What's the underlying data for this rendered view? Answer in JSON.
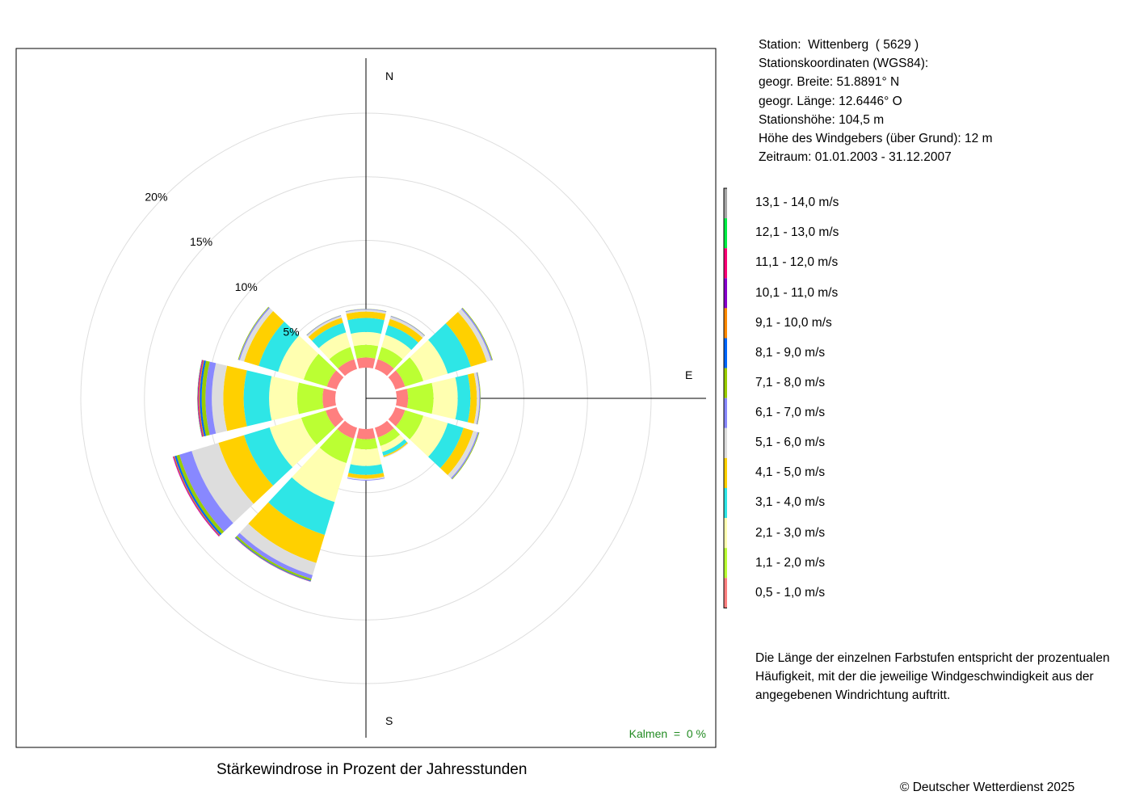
{
  "station": {
    "lines": [
      "Station:  Wittenberg  ( 5629 )",
      "Stationskoordinaten (WGS84):",
      "geogr. Breite: 51.8891° N",
      "geogr. Länge: 12.6446° O",
      "Stationshöhe: 104,5 m",
      "Höhe des Windgebers (über Grund): 12 m",
      "Zeitraum: 01.01.2003 - 31.12.2007"
    ]
  },
  "legend": [
    {
      "label": "13,1 - 14,0 m/s",
      "color": "#a6a6a6"
    },
    {
      "label": "12,1 - 13,0 m/s",
      "color": "#00ee44"
    },
    {
      "label": "11,1 - 12,0 m/s",
      "color": "#ff0077"
    },
    {
      "label": "10,1 - 11,0 m/s",
      "color": "#8800cc"
    },
    {
      "label": "9,1 - 10,0 m/s",
      "color": "#ff8800"
    },
    {
      "label": "8,1 - 9,0 m/s",
      "color": "#0066ff"
    },
    {
      "label": "7,1 - 8,0 m/s",
      "color": "#99cc00"
    },
    {
      "label": "6,1 - 7,0 m/s",
      "color": "#8888ff"
    },
    {
      "label": "5,1 - 6,0 m/s",
      "color": "#dddddd"
    },
    {
      "label": "4,1 - 5,0 m/s",
      "color": "#ffd000"
    },
    {
      "label": "3,1 - 4,0 m/s",
      "color": "#2ee6e6"
    },
    {
      "label": "2,1 - 3,0 m/s",
      "color": "#ffffb0"
    },
    {
      "label": "1,1 - 2,0 m/s",
      "color": "#bbff33"
    },
    {
      "label": "0,5 - 1,0 m/s",
      "color": "#ff7f7f"
    }
  ],
  "note": [
    "Die Länge der einzelnen Farbstufen entspricht der prozentualen",
    "Häufigkeit, mit der die jeweilige Windgeschwindigkeit aus der",
    "angegebenen Windrichtung auftritt."
  ],
  "title": "Stärkewindrose in Prozent der Jahresstunden",
  "copyright": "© Deutscher Wetterdienst  2025",
  "chart_data": {
    "type": "windrose",
    "title": "Stärkewindrose in Prozent der Jahresstunden",
    "radial_unit": "%",
    "radial_ticks": [
      5,
      10,
      15,
      20
    ],
    "radial_tick_labels": [
      "5%",
      "10%",
      "15%",
      "20%"
    ],
    "compass_labels": {
      "N": "N",
      "E": "E",
      "S": "S"
    },
    "calm_label": "Kalmen  =  0 %",
    "directions_deg": [
      0,
      30,
      60,
      90,
      120,
      150,
      180,
      210,
      240,
      270,
      300,
      330
    ],
    "speed_classes": [
      "0,5 - 1,0 m/s",
      "1,1 - 2,0 m/s",
      "2,1 - 3,0 m/s",
      "3,1 - 4,0 m/s",
      "4,1 - 5,0 m/s",
      "5,1 - 6,0 m/s",
      "6,1 - 7,0 m/s",
      "7,1 - 8,0 m/s",
      "8,1 - 9,0 m/s",
      "9,1 - 10,0 m/s",
      "10,1 - 11,0 m/s",
      "11,1 - 12,0 m/s",
      "12,1 - 13,0 m/s",
      "13,1 - 14,0 m/s"
    ],
    "series": [
      {
        "direction_deg": 0,
        "values": [
          0.8,
          1.0,
          1.0,
          1.1,
          0.5,
          0.15,
          0.05,
          0.02,
          0,
          0,
          0,
          0,
          0,
          0
        ]
      },
      {
        "direction_deg": 30,
        "values": [
          0.8,
          1.0,
          1.0,
          0.8,
          0.5,
          0.2,
          0.05,
          0.02,
          0,
          0,
          0,
          0,
          0,
          0
        ]
      },
      {
        "direction_deg": 60,
        "values": [
          0.8,
          1.5,
          2.0,
          1.9,
          1.3,
          0.35,
          0.1,
          0.05,
          0,
          0,
          0,
          0,
          0,
          0
        ]
      },
      {
        "direction_deg": 90,
        "values": [
          0.9,
          2.0,
          1.9,
          1.0,
          0.5,
          0.2,
          0.07,
          0.03,
          0,
          0,
          0,
          0,
          0,
          0
        ]
      },
      {
        "direction_deg": 120,
        "values": [
          0.8,
          1.5,
          2.0,
          1.3,
          0.8,
          0.35,
          0.1,
          0.05,
          0,
          0,
          0,
          0,
          0,
          0
        ]
      },
      {
        "direction_deg": 150,
        "values": [
          0.8,
          0.7,
          0.5,
          0.3,
          0.1,
          0.05,
          0,
          0,
          0,
          0,
          0,
          0,
          0,
          0
        ]
      },
      {
        "direction_deg": 180,
        "values": [
          0.8,
          0.8,
          1.3,
          0.7,
          0.3,
          0.1,
          0.05,
          0,
          0,
          0,
          0,
          0,
          0,
          0
        ]
      },
      {
        "direction_deg": 210,
        "values": [
          0.9,
          2.0,
          3.2,
          2.7,
          2.3,
          1.0,
          0.3,
          0.15,
          0.05,
          0.02,
          0.02,
          0,
          0,
          0
        ]
      },
      {
        "direction_deg": 240,
        "values": [
          0.9,
          2.0,
          2.6,
          2.1,
          2.1,
          2.2,
          1.0,
          0.25,
          0.15,
          0.07,
          0.05,
          0.03,
          0,
          0
        ]
      },
      {
        "direction_deg": 270,
        "values": [
          1.0,
          2.0,
          2.2,
          2.0,
          1.6,
          0.9,
          0.5,
          0.3,
          0.15,
          0.08,
          0.05,
          0.04,
          0.02,
          0
        ]
      },
      {
        "direction_deg": 300,
        "values": [
          0.8,
          1.9,
          2.1,
          1.6,
          1.2,
          0.35,
          0.1,
          0.05,
          0,
          0,
          0,
          0,
          0,
          0
        ]
      },
      {
        "direction_deg": 330,
        "values": [
          0.8,
          1.0,
          1.2,
          0.8,
          0.4,
          0.15,
          0.05,
          0.02,
          0,
          0,
          0,
          0,
          0,
          0
        ]
      }
    ]
  }
}
